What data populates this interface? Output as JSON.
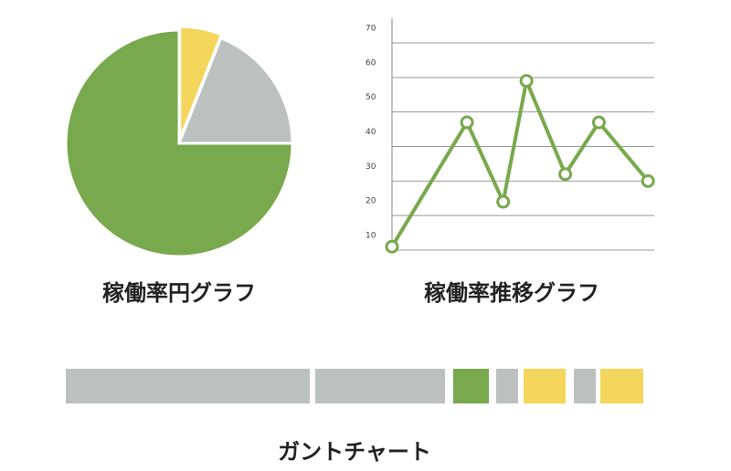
{
  "chart_data": [
    {
      "type": "pie",
      "title": "稼働率円グラフ",
      "values": [
        6,
        19,
        75
      ],
      "colors": [
        "#f3d65b",
        "#bcc1c0",
        "#78a94d"
      ]
    },
    {
      "type": "line",
      "title": "稼働率推移グラフ",
      "x": [
        0,
        2.9,
        4.3,
        5.2,
        6.7,
        8.0,
        9.9
      ],
      "values": [
        11,
        47,
        24,
        59,
        32,
        47,
        30
      ],
      "color": "#78a94d",
      "xlim": [
        0,
        10
      ],
      "ylim": [
        10,
        70
      ],
      "yticks": [
        10,
        20,
        30,
        40,
        50,
        60,
        70
      ],
      "grid": true
    },
    {
      "type": "gantt",
      "title": "ガントチャート",
      "xlim": [
        0,
        632
      ],
      "tasks": [
        {
          "start": 0,
          "end": 267,
          "color": "#bcc1c0"
        },
        {
          "start": 273,
          "end": 415,
          "color": "#bcc1c0"
        },
        {
          "start": 424,
          "end": 463,
          "color": "#78a94d"
        },
        {
          "start": 471,
          "end": 495,
          "color": "#bcc1c0"
        },
        {
          "start": 501,
          "end": 547,
          "color": "#f3d65b"
        },
        {
          "start": 556,
          "end": 580,
          "color": "#bcc1c0"
        },
        {
          "start": 585,
          "end": 632,
          "color": "#f3d65b"
        }
      ]
    }
  ]
}
